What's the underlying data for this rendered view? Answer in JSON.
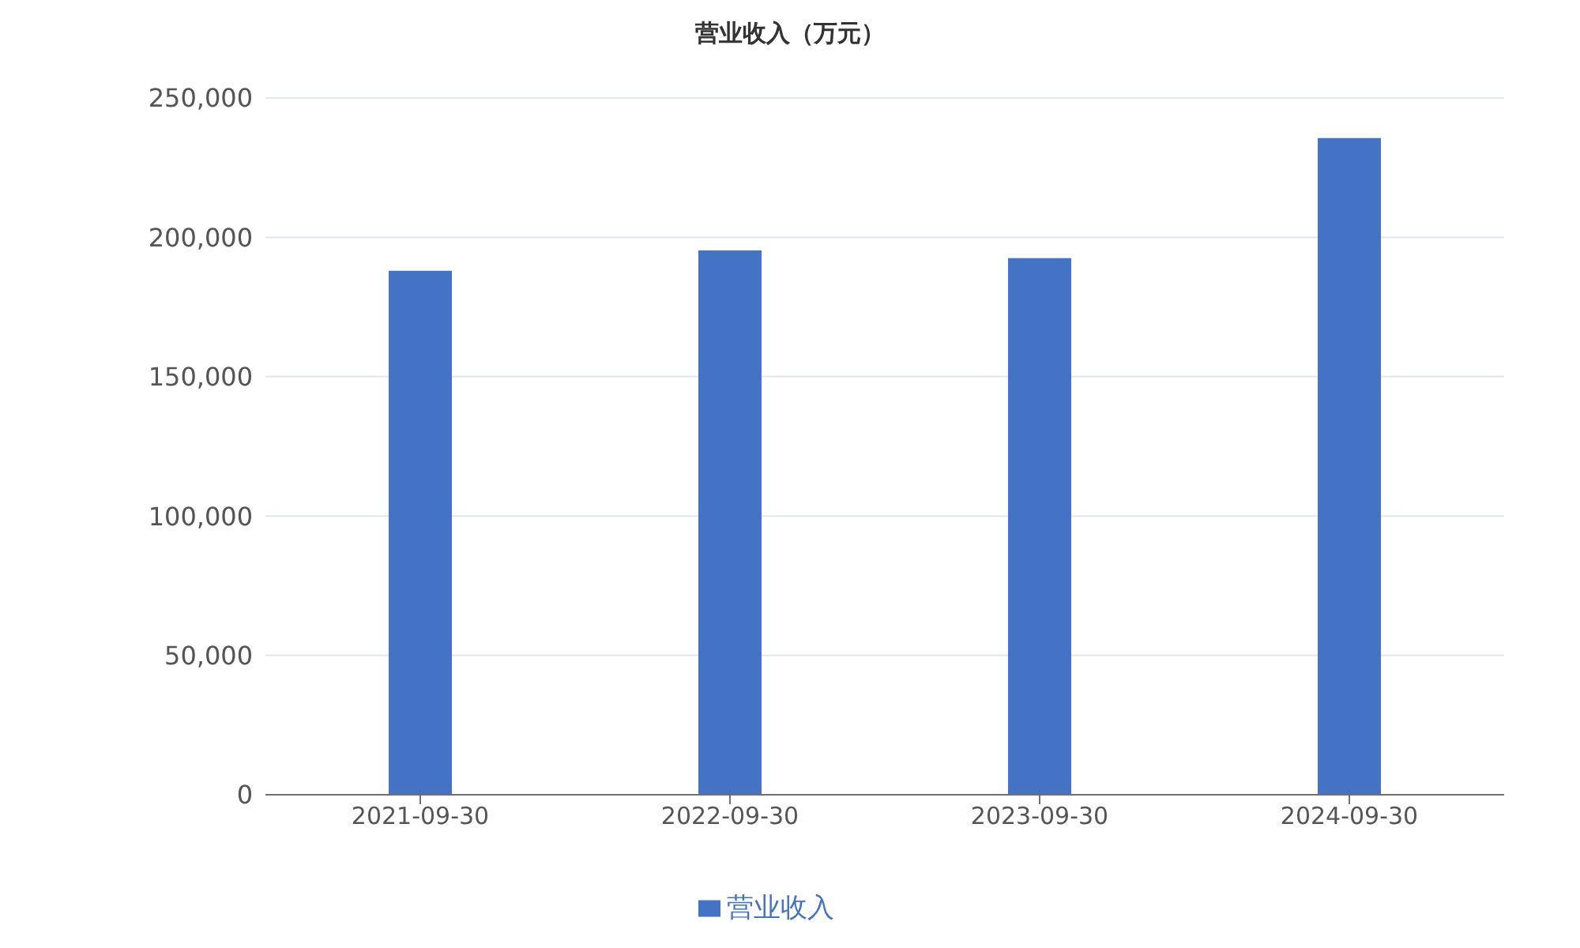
{
  "chart_data": {
    "type": "bar",
    "title": "营业收入（万元）",
    "categories": [
      "2021-09-30",
      "2022-09-30",
      "2023-09-30",
      "2024-09-30"
    ],
    "series": [
      {
        "name": "营业收入",
        "color": "#4472c4",
        "values": [
          188000,
          195300,
          192500,
          235600
        ]
      }
    ],
    "ylim": [
      0,
      250000
    ],
    "yticks": [
      0,
      {
        "value": 50000,
        "label": "50,000"
      },
      {
        "value": 100000,
        "label": "100,000"
      },
      {
        "value": 150000,
        "label": "150,000"
      },
      {
        "value": 200000,
        "label": "200,000"
      },
      {
        "value": 250000,
        "label": "250,000"
      }
    ],
    "grid": "y",
    "legend": "bottom"
  }
}
